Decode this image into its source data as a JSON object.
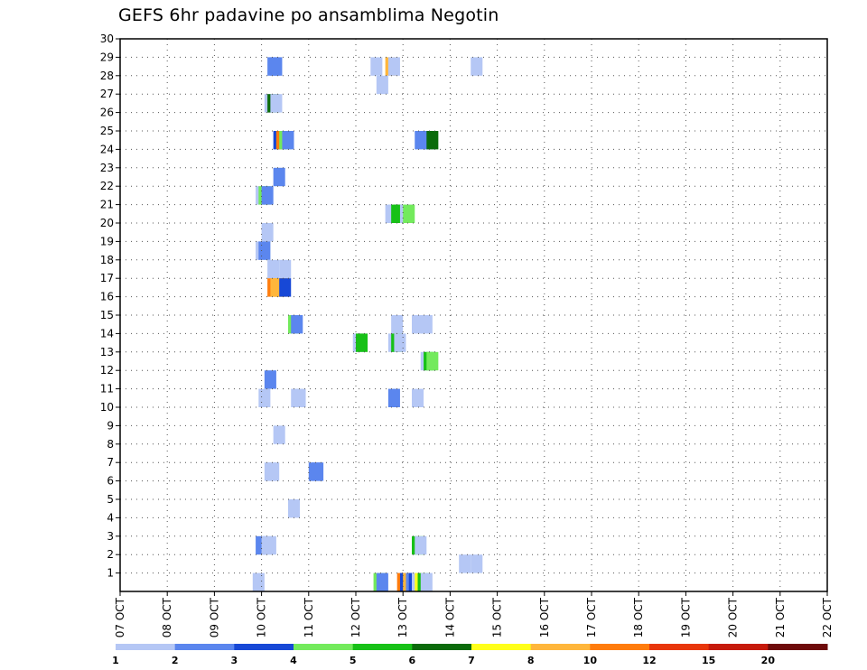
{
  "title": "GEFS 6hr padavine po ansamblima Negotin",
  "chart_data": {
    "type": "heatmap",
    "title": "GEFS 6hr padavine po ansamblima Negotin",
    "xlabel": "",
    "ylabel": "",
    "x_ticks": [
      "07 OCT",
      "08 OCT",
      "09 OCT",
      "10 OCT",
      "11 OCT",
      "12 OCT",
      "13 OCT",
      "14 OCT",
      "15 OCT",
      "16 OCT",
      "17 OCT",
      "18 OCT",
      "19 OCT",
      "20 OCT",
      "21 OCT",
      "22 OCT"
    ],
    "xlim_days": [
      0,
      15
    ],
    "time_step_hours": 6,
    "y_ticks": [
      1,
      2,
      3,
      4,
      5,
      6,
      7,
      8,
      9,
      10,
      11,
      12,
      13,
      14,
      15,
      16,
      17,
      18,
      19,
      20,
      21,
      22,
      23,
      24,
      25,
      26,
      27,
      28,
      29,
      30
    ],
    "ylim": [
      0,
      30
    ],
    "grid": true,
    "colorbar": {
      "labels": [
        "1",
        "2",
        "3",
        "4",
        "5",
        "6",
        "7",
        "8",
        "10",
        "12",
        "15",
        "20"
      ],
      "colors": [
        "#b5c7f5",
        "#5b86ee",
        "#1748d6",
        "#73ea5c",
        "#17c117",
        "#0b6b0b",
        "#ffff1a",
        "#ffb63b",
        "#ff7c0c",
        "#e8360b",
        "#c61a0b",
        "#6e0b0b"
      ]
    },
    "cells": [
      {
        "x": 12.5,
        "m": 28,
        "c": 2
      },
      {
        "x": 12.75,
        "m": 28,
        "c": 2
      },
      {
        "x": 21.25,
        "m": 28,
        "c": 1
      },
      {
        "x": 22.5,
        "m": 28,
        "c": 8
      },
      {
        "x": 22.75,
        "m": 28,
        "c": 1
      },
      {
        "x": 29.75,
        "m": 28,
        "c": 1
      },
      {
        "x": 21.75,
        "m": 27,
        "c": 1
      },
      {
        "x": 12.25,
        "m": 26,
        "c": 1
      },
      {
        "x": 12.5,
        "m": 26,
        "c": 6
      },
      {
        "x": 12.75,
        "m": 26,
        "c": 1
      },
      {
        "x": 13.0,
        "m": 24,
        "c": 3
      },
      {
        "x": 13.25,
        "m": 24,
        "c": 9
      },
      {
        "x": 13.5,
        "m": 24,
        "c": 4
      },
      {
        "x": 13.75,
        "m": 24,
        "c": 2
      },
      {
        "x": 25.0,
        "m": 24,
        "c": 2
      },
      {
        "x": 25.75,
        "m": 24,
        "c": 2
      },
      {
        "x": 26.0,
        "m": 24,
        "c": 6
      },
      {
        "x": 13.0,
        "m": 22,
        "c": 2
      },
      {
        "x": 11.5,
        "m": 21,
        "c": 1
      },
      {
        "x": 11.75,
        "m": 21,
        "c": 4
      },
      {
        "x": 12.0,
        "m": 21,
        "c": 2
      },
      {
        "x": 22.5,
        "m": 20,
        "c": 1
      },
      {
        "x": 22.75,
        "m": 20,
        "c": 1
      },
      {
        "x": 23.0,
        "m": 20,
        "c": 5
      },
      {
        "x": 23.25,
        "m": 20,
        "c": 5
      },
      {
        "x": 23.75,
        "m": 20,
        "c": 1
      },
      {
        "x": 24.0,
        "m": 20,
        "c": 4
      },
      {
        "x": 12.0,
        "m": 19,
        "c": 1
      },
      {
        "x": 11.5,
        "m": 18,
        "c": 1
      },
      {
        "x": 11.75,
        "m": 18,
        "c": 2
      },
      {
        "x": 12.5,
        "m": 17,
        "c": 1
      },
      {
        "x": 13.5,
        "m": 17,
        "c": 1
      },
      {
        "x": 12.5,
        "m": 16,
        "c": 9
      },
      {
        "x": 12.75,
        "m": 16,
        "c": 8
      },
      {
        "x": 13.0,
        "m": 16,
        "c": 8
      },
      {
        "x": 13.25,
        "m": 16,
        "c": 8
      },
      {
        "x": 13.5,
        "m": 16,
        "c": 3
      },
      {
        "x": 14.25,
        "m": 14,
        "c": 4
      },
      {
        "x": 14.5,
        "m": 14,
        "c": 2
      },
      {
        "x": 23.0,
        "m": 14,
        "c": 1
      },
      {
        "x": 24.75,
        "m": 14,
        "c": 1
      },
      {
        "x": 25.5,
        "m": 14,
        "c": 1
      },
      {
        "x": 19.75,
        "m": 13,
        "c": 1
      },
      {
        "x": 20.0,
        "m": 13,
        "c": 5
      },
      {
        "x": 22.75,
        "m": 13,
        "c": 1
      },
      {
        "x": 23.0,
        "m": 13,
        "c": 5
      },
      {
        "x": 23.25,
        "m": 13,
        "c": 1
      },
      {
        "x": 25.5,
        "m": 12,
        "c": 1
      },
      {
        "x": 25.75,
        "m": 12,
        "c": 5
      },
      {
        "x": 26.0,
        "m": 12,
        "c": 4
      },
      {
        "x": 12.25,
        "m": 11,
        "c": 2
      },
      {
        "x": 11.75,
        "m": 10,
        "c": 1
      },
      {
        "x": 14.5,
        "m": 10,
        "c": 1
      },
      {
        "x": 14.75,
        "m": 10,
        "c": 1
      },
      {
        "x": 22.75,
        "m": 10,
        "c": 2
      },
      {
        "x": 24.75,
        "m": 10,
        "c": 1
      },
      {
        "x": 13.0,
        "m": 8,
        "c": 1
      },
      {
        "x": 12.25,
        "m": 6,
        "c": 1
      },
      {
        "x": 12.5,
        "m": 6,
        "c": 1
      },
      {
        "x": 16.0,
        "m": 6,
        "c": 2
      },
      {
        "x": 16.25,
        "m": 6,
        "c": 2
      },
      {
        "x": 14.25,
        "m": 4,
        "c": 1
      },
      {
        "x": 11.5,
        "m": 2,
        "c": 2
      },
      {
        "x": 12.0,
        "m": 2,
        "c": 1
      },
      {
        "x": 12.25,
        "m": 2,
        "c": 1
      },
      {
        "x": 24.75,
        "m": 2,
        "c": 5
      },
      {
        "x": 25.0,
        "m": 2,
        "c": 1
      },
      {
        "x": 28.75,
        "m": 1,
        "c": 1
      },
      {
        "x": 29.75,
        "m": 1,
        "c": 1
      },
      {
        "x": 11.25,
        "m": 0,
        "c": 1
      },
      {
        "x": 21.5,
        "m": 0,
        "c": 4
      },
      {
        "x": 21.75,
        "m": 0,
        "c": 2
      },
      {
        "x": 23.5,
        "m": 0,
        "c": 9
      },
      {
        "x": 23.75,
        "m": 0,
        "c": 3
      },
      {
        "x": 24.0,
        "m": 0,
        "c": 8
      },
      {
        "x": 24.25,
        "m": 0,
        "c": 2
      },
      {
        "x": 24.5,
        "m": 0,
        "c": 3
      },
      {
        "x": 24.75,
        "m": 0,
        "c": 1
      },
      {
        "x": 25.0,
        "m": 0,
        "c": 7
      },
      {
        "x": 25.25,
        "m": 0,
        "c": 5
      },
      {
        "x": 25.5,
        "m": 0,
        "c": 1
      }
    ]
  }
}
